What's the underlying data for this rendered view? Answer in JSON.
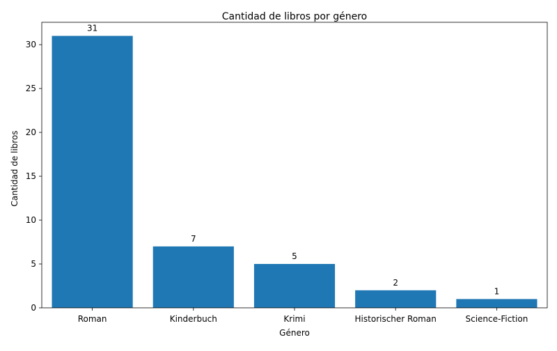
{
  "chart_data": {
    "type": "bar",
    "title": "Cantidad de libros por género",
    "xlabel": "Género",
    "ylabel": "Cantidad de libros",
    "categories": [
      "Roman",
      "Kinderbuch",
      "Krimi",
      "Historischer Roman",
      "Science-Fiction"
    ],
    "values": [
      31,
      7,
      5,
      2,
      1
    ],
    "data_labels": [
      "31",
      "7",
      "5",
      "2",
      "1"
    ],
    "ylim": [
      0,
      32.55
    ],
    "yticks": [
      0,
      5,
      10,
      15,
      20,
      25,
      30
    ],
    "grid": false,
    "legend": "none",
    "bar_color": "#1f77b4"
  }
}
